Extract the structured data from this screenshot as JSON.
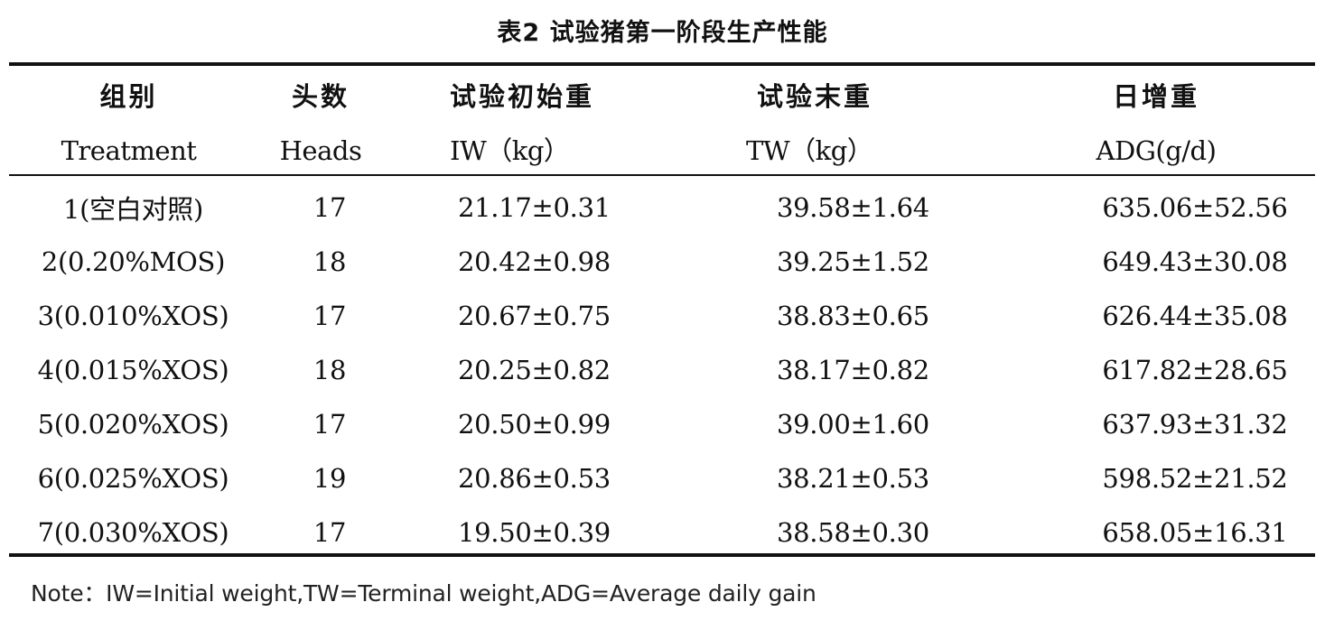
{
  "caption": "表2 试验猪第一阶段生产性能",
  "columns": [
    {
      "zh": "组别",
      "en": "Treatment"
    },
    {
      "zh": "头数",
      "en": "Heads"
    },
    {
      "zh": "试验初始重",
      "en": "IW（kg）"
    },
    {
      "zh": "试验末重",
      "en": "TW（kg）"
    },
    {
      "zh": "日增重",
      "en": "ADG(g/d)"
    }
  ],
  "rows": [
    [
      "1(空白对照)",
      "17",
      "21.17±0.31",
      "39.58±1.64",
      "635.06±52.56"
    ],
    [
      "2(0.20%MOS)",
      "18",
      "20.42±0.98",
      "39.25±1.52",
      "649.43±30.08"
    ],
    [
      "3(0.010%XOS)",
      "17",
      "20.67±0.75",
      "38.83±0.65",
      "626.44±35.08"
    ],
    [
      "4(0.015%XOS)",
      "18",
      "20.25±0.82",
      "38.17±0.82",
      "617.82±28.65"
    ],
    [
      "5(0.020%XOS)",
      "17",
      "20.50±0.99",
      "39.00±1.60",
      "637.93±31.32"
    ],
    [
      "6(0.025%XOS)",
      "19",
      "20.86±0.53",
      "38.21±0.53",
      "598.52±21.52"
    ],
    [
      "7(0.030%XOS)",
      "17",
      "19.50±0.39",
      "38.58±0.30",
      "658.05±16.31"
    ]
  ],
  "note": "Note：IW=Initial weight,TW=Terminal weight,ADG=Average daily gain"
}
